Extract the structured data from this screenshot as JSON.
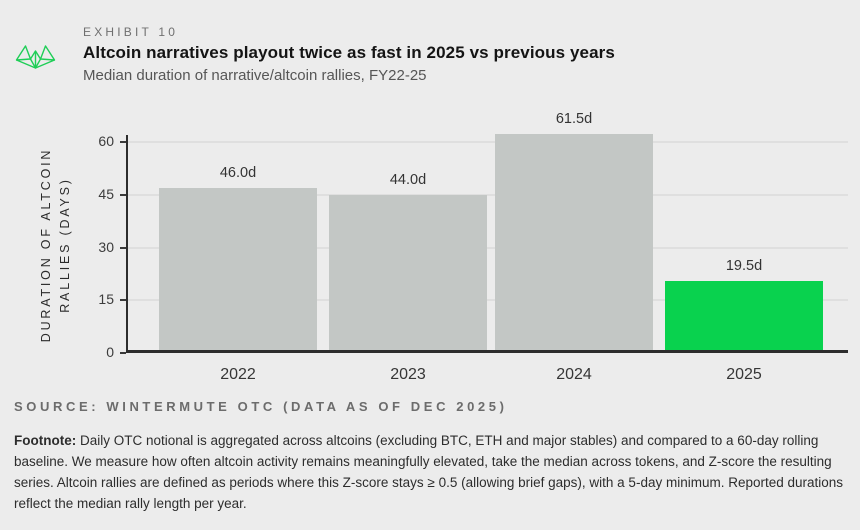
{
  "header": {
    "exhibit_label": "EXHIBIT 10",
    "title": "Altcoin narratives playout twice as fast in 2025 vs previous years",
    "subtitle": "Median duration of narrative/altcoin rallies, FY22-25",
    "logo_icon": "wintermute-logo"
  },
  "chart_data": {
    "type": "bar",
    "title": "Altcoin narratives playout twice as fast in 2025 vs previous years",
    "subtitle": "Median duration of narrative/altcoin rallies, FY22-25",
    "categories": [
      "2022",
      "2023",
      "2024",
      "2025"
    ],
    "values": [
      46.0,
      44.0,
      61.5,
      19.5
    ],
    "value_labels": [
      "46.0d",
      "44.0d",
      "61.5d",
      "19.5d"
    ],
    "bar_colors": [
      "#c3c7c5",
      "#c3c7c5",
      "#c3c7c5",
      "#09d24e"
    ],
    "highlight_category": "2025",
    "xlabel": "",
    "ylabel": "DURATION OF ALTCOIN RALLIES (DAYS)",
    "ylabel_lines": "DURATION OF ALTCOIN\nRALLIES (DAYS)",
    "yticks": [
      0,
      15,
      30,
      45,
      60
    ],
    "ylim": [
      0,
      62
    ],
    "grid": true,
    "legend": "none"
  },
  "footer": {
    "source": "SOURCE: WINTERMUTE OTC (DATA AS OF DEC 2025)",
    "footnote_label": "Footnote:",
    "footnote_text": "Daily OTC notional is aggregated across altcoins (excluding BTC, ETH and major stables) and compared to a 60-day rolling baseline. We measure how often altcoin activity remains meaningfully elevated, take the median across tokens, and Z-score the resulting series. Altcoin rallies are defined as periods where this Z-score stays ≥ 0.5 (allowing brief gaps), with a 5-day minimum. Reported durations reflect the median rally length per year."
  },
  "colors": {
    "background": "#ececec",
    "bar_gray": "#c3c7c5",
    "bar_green": "#09d24e",
    "logo_green": "#1fce57",
    "axis": "#2d2d2d",
    "gridline": "#dfdfdf",
    "title_text": "#141414",
    "muted_text": "#6f6f6f"
  }
}
